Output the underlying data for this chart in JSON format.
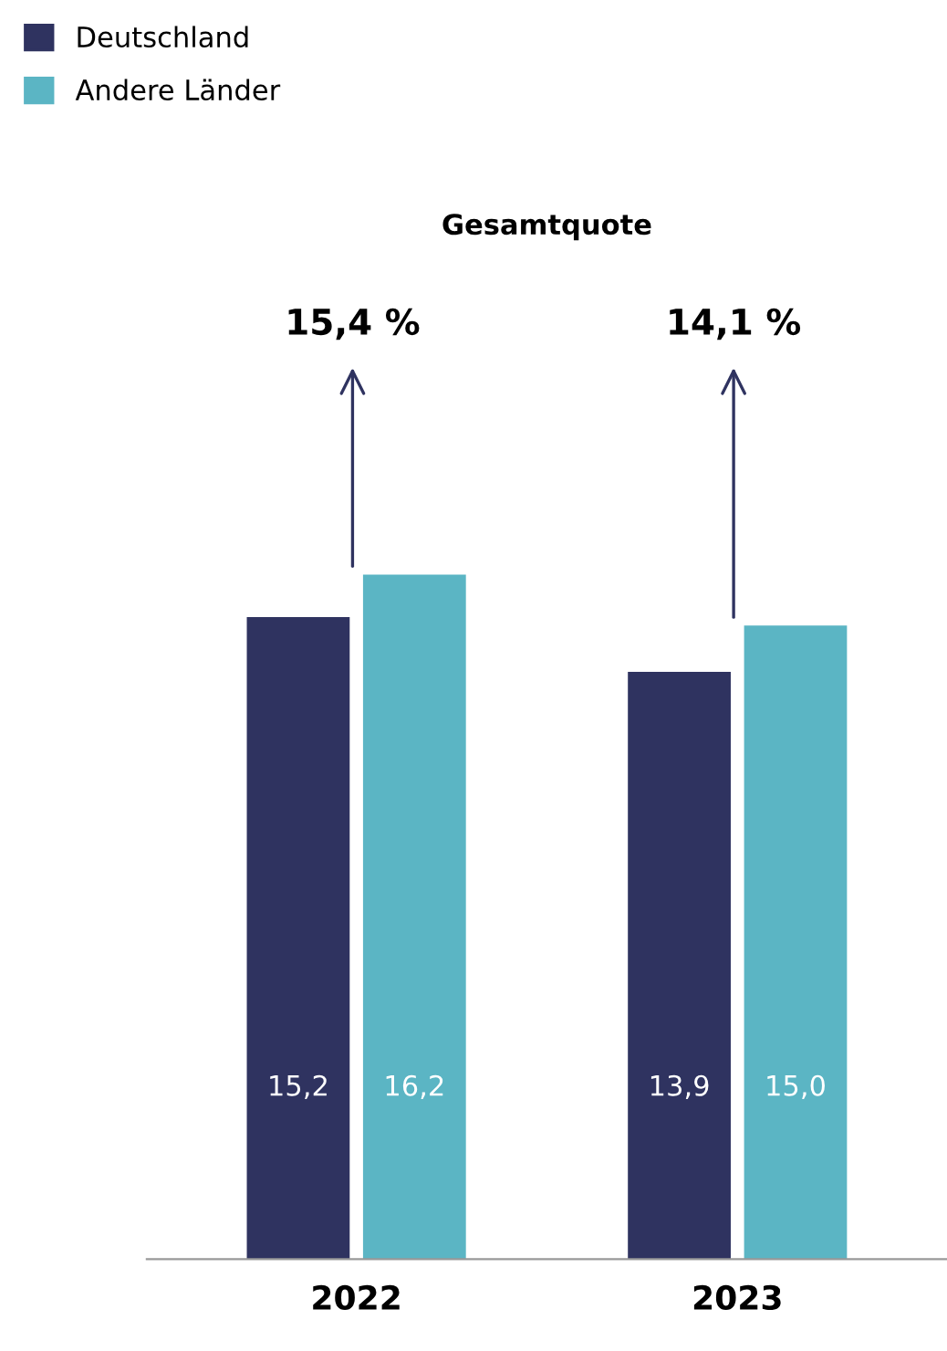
{
  "chart_data": {
    "type": "bar",
    "title": "Gesamtquote",
    "categories": [
      "2022",
      "2023"
    ],
    "series": [
      {
        "name": "Deutschland",
        "color": "#2f3360",
        "values": [
          15.2,
          13.9
        ],
        "value_labels": [
          "15,2",
          "13,9"
        ]
      },
      {
        "name": "Andere Länder",
        "color": "#5bb5c4",
        "values": [
          16.2,
          15.0
        ],
        "value_labels": [
          "16,2",
          "15,0"
        ]
      }
    ],
    "annotations": [
      "15,4 %",
      "14,1 %"
    ],
    "legend": "top left",
    "grid": false
  }
}
